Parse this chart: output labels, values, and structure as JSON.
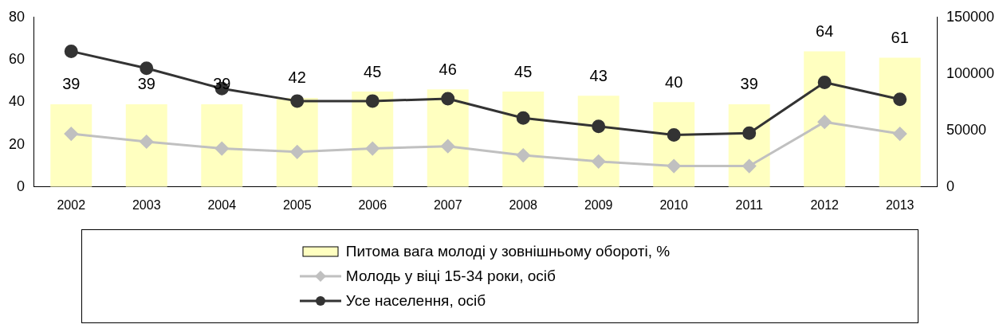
{
  "chart_data": {
    "type": "bar",
    "categories": [
      "2002",
      "2003",
      "2004",
      "2005",
      "2006",
      "2007",
      "2008",
      "2009",
      "2010",
      "2011",
      "2012",
      "2013"
    ],
    "series": [
      {
        "name": "Питома вага молоді у зовнішньому обороті, %",
        "color": "#ffffc0",
        "values": [
          39,
          39,
          39,
          42,
          45,
          46,
          45,
          43,
          40,
          39,
          64,
          61
        ],
        "data_labels": true
      },
      {
        "name": "Молодь у віці 15-34 роки, осіб",
        "type": "line",
        "axis": "y2",
        "color": "#c0c0c0",
        "marker": "diamond",
        "values": [
          47000,
          40000,
          34000,
          31000,
          34000,
          36000,
          28000,
          22500,
          18500,
          18500,
          57500,
          47000
        ]
      },
      {
        "name": "Усе населення, осіб",
        "type": "line",
        "axis": "y2",
        "color": "#333333",
        "marker": "circle",
        "values": [
          120000,
          105000,
          87000,
          76000,
          76000,
          78000,
          61000,
          53500,
          46000,
          47500,
          92500,
          77500
        ]
      }
    ],
    "ylim": [
      0,
      80
    ],
    "yticks": [
      0,
      20,
      40,
      60,
      80
    ],
    "y2lim": [
      0,
      150000
    ],
    "y2ticks": [
      0,
      50000,
      100000,
      150000
    ],
    "grid": false,
    "legend": "bottom"
  }
}
